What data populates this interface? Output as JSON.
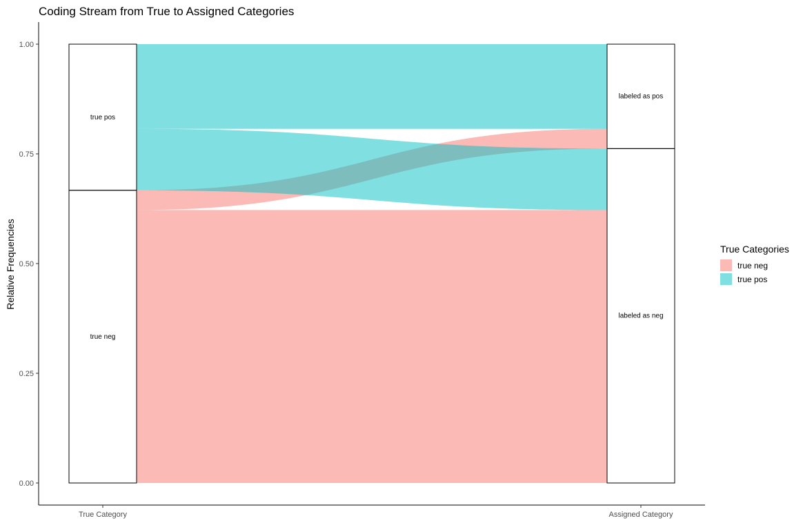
{
  "chart_data": {
    "type": "alluvial",
    "title": "Coding Stream from True to Assigned Categories",
    "xlabel": "",
    "ylabel": "Relative Frequencies",
    "ylim": [
      0,
      1
    ],
    "y_ticks": [
      "0.00",
      "0.25",
      "0.50",
      "0.75",
      "1.00"
    ],
    "y_tick_values": [
      0,
      0.25,
      0.5,
      0.75,
      1
    ],
    "axes": [
      "True Category",
      "Assigned Category"
    ],
    "strata": {
      "True Category": [
        {
          "label": "true neg",
          "value": 0.667
        },
        {
          "label": "true pos",
          "value": 0.333
        }
      ],
      "Assigned Category": [
        {
          "label": "labeled as neg",
          "value": 0.762
        },
        {
          "label": "labeled as pos",
          "value": 0.238
        }
      ]
    },
    "flows": [
      {
        "from": "true neg",
        "to": "labeled as neg",
        "fill": "true neg",
        "value": 0.622
      },
      {
        "from": "true neg",
        "to": "labeled as pos",
        "fill": "true neg",
        "value": 0.045
      },
      {
        "from": "true pos",
        "to": "labeled as neg",
        "fill": "true pos",
        "value": 0.14
      },
      {
        "from": "true pos",
        "to": "labeled as pos",
        "fill": "true pos",
        "value": 0.193
      }
    ],
    "legend": {
      "title": "True Categories",
      "position": "right",
      "entries": [
        {
          "label": "true neg",
          "color": "#F8766D"
        },
        {
          "label": "true pos",
          "color": "#00BFC4"
        }
      ]
    },
    "grid": false
  }
}
